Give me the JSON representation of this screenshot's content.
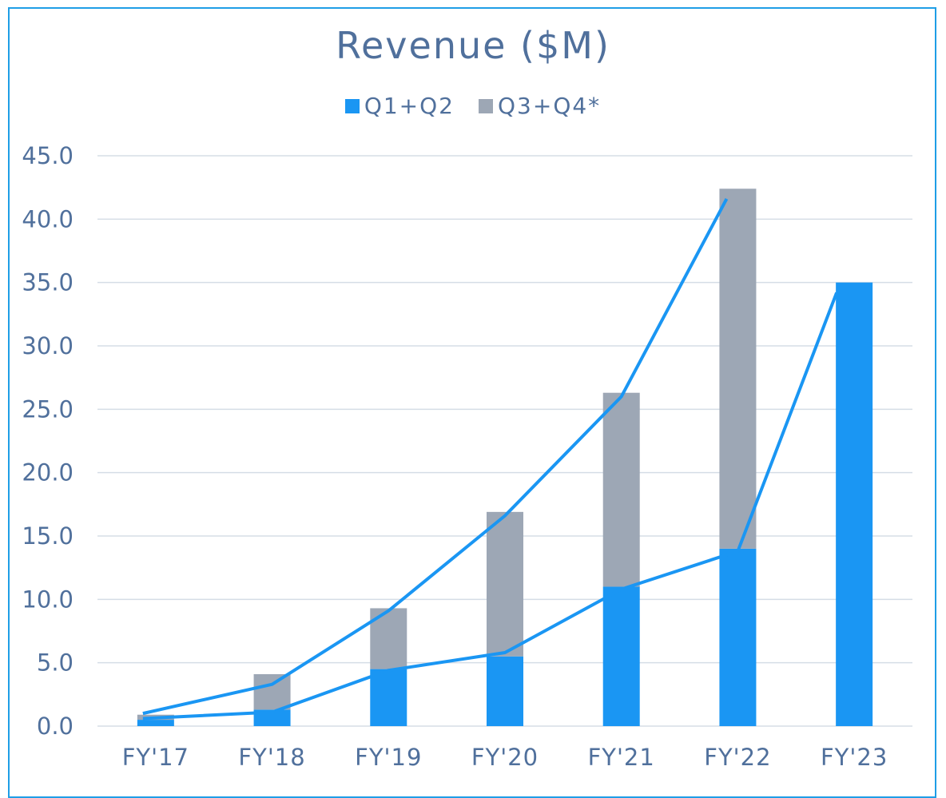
{
  "chart_data": {
    "type": "bar",
    "stacked": true,
    "title": "Revenue ($M)",
    "categories": [
      "FY'17",
      "FY'18",
      "FY'19",
      "FY'20",
      "FY'21",
      "FY'22",
      "FY'23"
    ],
    "series": [
      {
        "name": "Q1+Q2",
        "values": [
          0.5,
          1.3,
          4.5,
          5.5,
          11.0,
          14.0,
          35.0
        ],
        "color": "#1a96f3"
      },
      {
        "name": "Q3+Q4*",
        "values": [
          0.4,
          2.8,
          4.8,
          11.4,
          15.3,
          28.4,
          null
        ],
        "color": "#9da7b5"
      }
    ],
    "trend_lines": {
      "color": "#1a96f3",
      "total_trend": [
        1.0,
        3.3,
        9.1,
        16.6,
        26.0,
        41.6
      ],
      "first_half_trend": [
        0.6,
        1.1,
        4.4,
        5.8,
        10.8,
        13.8,
        34.2
      ]
    },
    "ylim": [
      0,
      45
    ],
    "y_ticks": [
      "0.0",
      "5.0",
      "10.0",
      "15.0",
      "20.0",
      "25.0",
      "30.0",
      "35.0",
      "40.0",
      "45.0"
    ],
    "grid": true,
    "legend_position": "top-center",
    "xlabel": "",
    "ylabel": ""
  }
}
